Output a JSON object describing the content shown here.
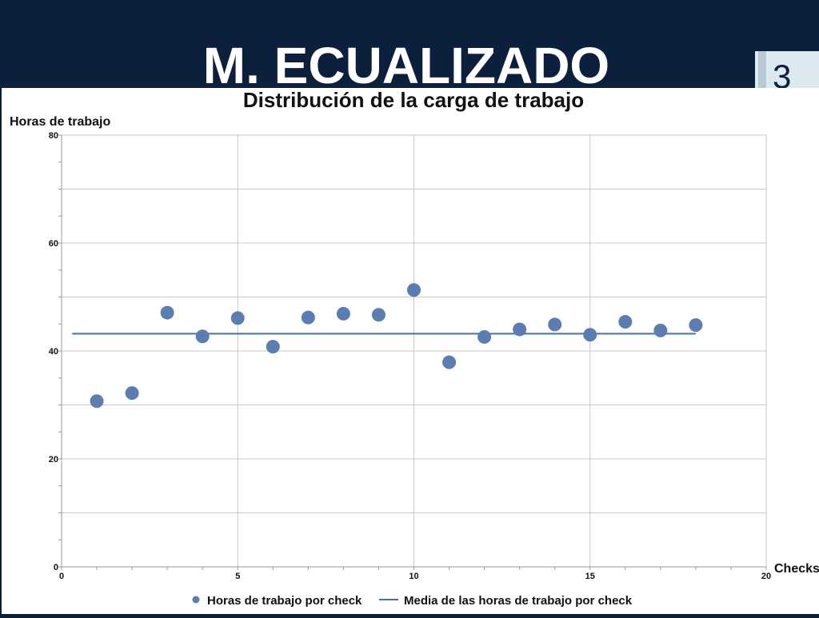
{
  "slide": {
    "title": "M. ECUALIZADO",
    "page_number": "3"
  },
  "colors": {
    "header_bg": "#0c1f3c",
    "series": "#5b7db1",
    "mean_line": "#4a6fa5"
  },
  "chart_data": {
    "type": "scatter",
    "title": "Distribución de la carga de trabajo",
    "xlabel": "Checks",
    "ylabel": "Horas de trabajo",
    "xlim": [
      0,
      20
    ],
    "ylim": [
      0,
      80
    ],
    "x_ticks": [
      0,
      5,
      10,
      15,
      20
    ],
    "y_ticks": [
      0,
      20,
      40,
      60,
      80
    ],
    "grid": true,
    "legend_position": "bottom",
    "series": [
      {
        "name": "Horas de trabajo por check",
        "type": "scatter",
        "x": [
          1,
          2,
          3,
          4,
          5,
          6,
          7,
          8,
          9,
          10,
          11,
          12,
          13,
          14,
          15,
          16,
          17,
          18
        ],
        "y": [
          30.7,
          32.2,
          47.1,
          42.7,
          46.1,
          40.8,
          46.2,
          46.9,
          46.7,
          51.3,
          37.9,
          42.6,
          44.0,
          44.9,
          43.0,
          45.4,
          43.8,
          44.8
        ]
      },
      {
        "name": "Media de las horas de trabajo por check",
        "type": "line",
        "x": [
          0.3,
          18
        ],
        "y": [
          43.2,
          43.2
        ]
      }
    ]
  }
}
